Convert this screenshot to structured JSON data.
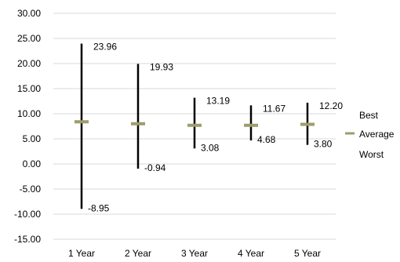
{
  "chart_data": {
    "type": "line",
    "categories": [
      "1 Year",
      "2 Year",
      "3 Year",
      "4 Year",
      "5 Year"
    ],
    "series": [
      {
        "name": "Best",
        "values": [
          23.96,
          19.93,
          13.19,
          11.67,
          12.2
        ]
      },
      {
        "name": "Average",
        "values": [
          8.4,
          8.0,
          7.7,
          7.7,
          7.9
        ]
      },
      {
        "name": "Worst",
        "values": [
          -8.95,
          -0.94,
          3.08,
          4.68,
          3.8
        ]
      }
    ],
    "best_labels": [
      "23.96",
      "19.93",
      "13.19",
      "11.67",
      "12.20"
    ],
    "worst_labels": [
      "-8.95",
      "-0.94",
      "3.08",
      "4.68",
      "3.80"
    ],
    "y_ticks": [
      "30.00",
      "25.00",
      "20.00",
      "15.00",
      "10.00",
      "5.00",
      "0.00",
      "-5.00",
      "-10.00",
      "-15.00"
    ],
    "ylim": [
      -15,
      30
    ],
    "y_step": 5,
    "grid": true,
    "legend_position": "right",
    "colors": {
      "range_line": "#000000",
      "average_marker": "#9E9C6B",
      "grid": "#d9d9d9"
    },
    "title": "",
    "xlabel": "",
    "ylabel": ""
  }
}
